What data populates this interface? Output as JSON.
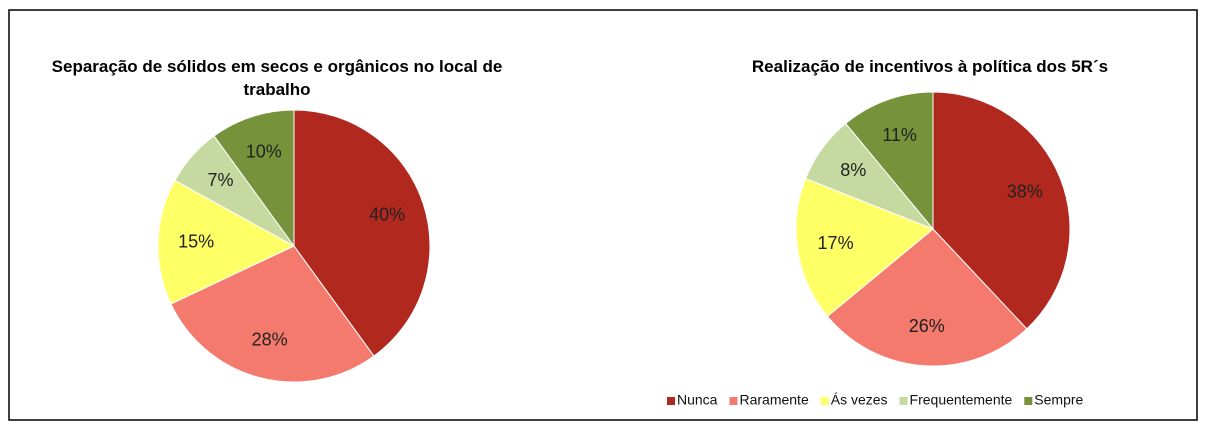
{
  "chart_data": [
    {
      "type": "pie",
      "title": "Separação de sólidos em secos e orgânicos no local de trabalho",
      "categories": [
        "Nunca",
        "Raramente",
        "Ás vezes",
        "Frequentemente",
        "Sempre"
      ],
      "values": [
        40,
        28,
        15,
        7,
        10
      ],
      "value_labels": [
        "40%",
        "28%",
        "15%",
        "7%",
        "10%"
      ],
      "colors": [
        "#b0281e",
        "#f47a6e",
        "#ffff66",
        "#c5d9a0",
        "#76933c"
      ]
    },
    {
      "type": "pie",
      "title": "Realização de incentivos à política dos 5R´s",
      "categories": [
        "Nunca",
        "Raramente",
        "Ás vezes",
        "Frequentemente",
        "Sempre"
      ],
      "values": [
        38,
        26,
        17,
        8,
        11
      ],
      "value_labels": [
        "38%",
        "26%",
        "17%",
        "8%",
        "11%"
      ],
      "colors": [
        "#b0281e",
        "#f47a6e",
        "#ffff66",
        "#c5d9a0",
        "#76933c"
      ],
      "legend": "bottom-right"
    }
  ]
}
